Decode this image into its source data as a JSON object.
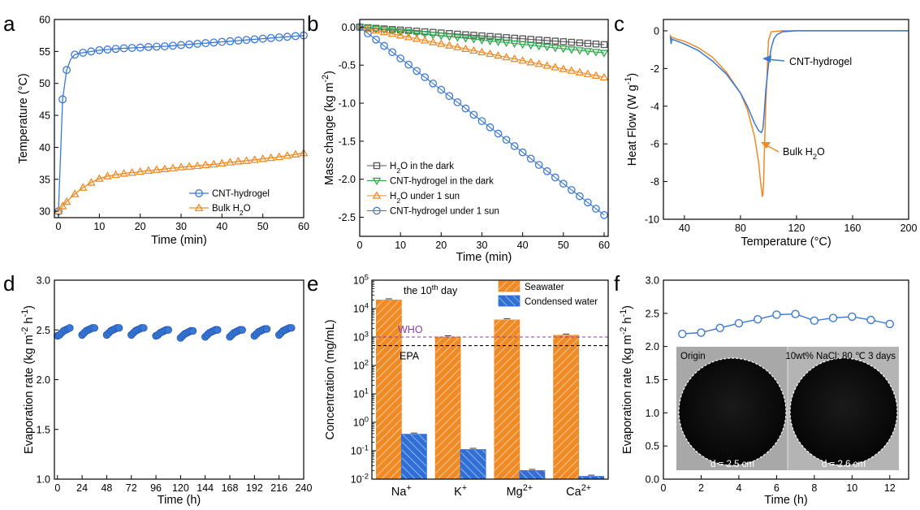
{
  "chart_data": [
    {
      "panel": "a",
      "type": "line",
      "xlabel": "Time (min)",
      "ylabel": "Temperature (°C)",
      "xlim": [
        -1,
        60
      ],
      "ylim": [
        29,
        60
      ],
      "xticks": [
        0,
        10,
        20,
        30,
        40,
        50,
        60
      ],
      "yticks": [
        30,
        35,
        40,
        45,
        50,
        55,
        60
      ],
      "legend_position": "bottom-right",
      "series": [
        {
          "name": "CNT-hydrogel",
          "marker": "circle",
          "color": "#3a78d8",
          "x": [
            0,
            1,
            2,
            3,
            4,
            5,
            6,
            7,
            8,
            9,
            10,
            11,
            12,
            13,
            14,
            15,
            16,
            17,
            18,
            19,
            20,
            21,
            22,
            23,
            24,
            25,
            26,
            27,
            28,
            29,
            30,
            31,
            32,
            33,
            34,
            35,
            36,
            37,
            38,
            39,
            40,
            41,
            42,
            43,
            44,
            45,
            46,
            47,
            48,
            49,
            50,
            51,
            52,
            53,
            54,
            55,
            56,
            57,
            58,
            59,
            60
          ],
          "y": [
            30,
            47.5,
            52.1,
            53.8,
            54.5,
            54.7,
            54.8,
            54.9,
            55.0,
            55.1,
            55.2,
            55.25,
            55.3,
            55.35,
            55.4,
            55.45,
            55.5,
            55.5,
            55.55,
            55.6,
            55.6,
            55.65,
            55.7,
            55.7,
            55.75,
            55.8,
            55.8,
            55.85,
            55.9,
            55.95,
            56.0,
            56.05,
            56.1,
            56.15,
            56.2,
            56.25,
            56.3,
            56.35,
            56.4,
            56.45,
            56.5,
            56.55,
            56.6,
            56.65,
            56.7,
            56.75,
            56.8,
            56.85,
            56.9,
            56.95,
            57.0,
            57.05,
            57.1,
            57.15,
            57.2,
            57.25,
            57.3,
            57.35,
            57.4,
            57.45,
            57.5
          ],
          "show_markers_every": 2
        },
        {
          "name": "Bulk H2O",
          "marker": "triangle",
          "color": "#f08a24",
          "x": [
            0,
            1,
            2,
            3,
            4,
            5,
            6,
            7,
            8,
            9,
            10,
            11,
            12,
            13,
            14,
            15,
            16,
            17,
            18,
            19,
            20,
            21,
            22,
            23,
            24,
            25,
            26,
            27,
            28,
            29,
            30,
            31,
            32,
            33,
            34,
            35,
            36,
            37,
            38,
            39,
            40,
            41,
            42,
            43,
            44,
            45,
            46,
            47,
            48,
            49,
            50,
            51,
            52,
            53,
            54,
            55,
            56,
            57,
            58,
            59,
            60
          ],
          "y": [
            30,
            30.8,
            31.5,
            32.1,
            32.7,
            33.2,
            33.7,
            34.1,
            34.5,
            34.8,
            35.1,
            35.3,
            35.5,
            35.6,
            35.7,
            35.8,
            35.9,
            36.0,
            36.05,
            36.1,
            36.2,
            36.3,
            36.35,
            36.4,
            36.5,
            36.55,
            36.6,
            36.7,
            36.75,
            36.8,
            36.9,
            36.95,
            37.0,
            37.05,
            37.1,
            37.2,
            37.25,
            37.3,
            37.35,
            37.4,
            37.5,
            37.6,
            37.65,
            37.7,
            37.8,
            37.85,
            37.9,
            38.0,
            38.05,
            38.1,
            38.2,
            38.3,
            38.35,
            38.4,
            38.5,
            38.6,
            38.7,
            38.8,
            38.9,
            39.0,
            39.1
          ],
          "show_markers_every": 2
        }
      ]
    },
    {
      "panel": "b",
      "type": "line",
      "xlabel": "Time (min)",
      "ylabel": "Mass change (kg m⁻²)",
      "xlim": [
        0,
        61
      ],
      "ylim": [
        -2.75,
        0.1
      ],
      "xticks": [
        0,
        10,
        20,
        30,
        40,
        50,
        60
      ],
      "yticks": [
        0.0,
        -0.5,
        -1.0,
        -1.5,
        -2.0,
        -2.5
      ],
      "ytick_labels": [
        "0.0",
        "-0.5",
        "-1.0",
        "-1.5",
        "-2.0",
        "-2.5"
      ],
      "legend_position": "bottom-left",
      "series": [
        {
          "name": "H2O in the dark",
          "marker": "square",
          "color": "#555555",
          "x_step": 2,
          "x_end": 60,
          "y_start": 0,
          "y_end": -0.23
        },
        {
          "name": "CNT-hydrogel in the dark",
          "marker": "triangle-down",
          "color": "#2aa84a",
          "x_step": 2,
          "x_end": 60,
          "y_start": 0,
          "y_end": -0.34
        },
        {
          "name": "H2O under 1 sun",
          "marker": "triangle",
          "color": "#f08a24",
          "x_step": 2,
          "x_end": 60,
          "y_start": 0,
          "y_end": -0.66
        },
        {
          "name": "CNT-hydrogel under 1 sun",
          "marker": "circle",
          "color": "#3a78d8",
          "x_step": 2,
          "x_end": 60,
          "y_start": 0,
          "y_end": -2.47
        }
      ]
    },
    {
      "panel": "c",
      "type": "line",
      "xlabel": "Temperature (°C)",
      "ylabel": "Heat Flow (W g⁻¹)",
      "xlim": [
        25,
        200
      ],
      "ylim": [
        -10,
        0.6
      ],
      "xticks": [
        40,
        80,
        120,
        160,
        200
      ],
      "yticks": [
        0,
        -2,
        -4,
        -6,
        -8,
        -10
      ],
      "series": [
        {
          "name": "CNT-hydrogel",
          "color": "#3a78d8",
          "x": [
            30,
            30.5,
            31,
            35,
            40,
            50,
            60,
            70,
            80,
            85,
            90,
            93,
            95,
            96,
            97,
            98,
            100,
            102,
            104,
            106,
            110,
            120,
            140,
            160,
            200
          ],
          "y": [
            -0.3,
            -0.7,
            -0.45,
            -0.55,
            -0.7,
            -1.05,
            -1.6,
            -2.3,
            -3.3,
            -4.0,
            -4.9,
            -5.3,
            -5.4,
            -5.2,
            -4.3,
            -3.2,
            -1.8,
            -0.9,
            -0.4,
            -0.2,
            -0.05,
            0.0,
            0.0,
            0.0,
            0.0
          ]
        },
        {
          "name": "Bulk H2O",
          "color": "#f08a24",
          "x": [
            30,
            30.5,
            31,
            35,
            40,
            50,
            60,
            70,
            80,
            85,
            90,
            93,
            94,
            95,
            95.5,
            96,
            96.5,
            97,
            98,
            100,
            102,
            110,
            120,
            160,
            200
          ],
          "y": [
            -0.2,
            -0.5,
            -0.35,
            -0.45,
            -0.55,
            -0.9,
            -1.4,
            -2.2,
            -3.3,
            -4.2,
            -5.6,
            -7.0,
            -7.8,
            -8.4,
            -8.8,
            -8.7,
            -8.0,
            -6.5,
            -4.0,
            -0.5,
            -0.05,
            0.0,
            0.0,
            0.0,
            0.0
          ]
        }
      ],
      "annotations": [
        "CNT-hydrogel",
        "Bulk H2O"
      ]
    },
    {
      "panel": "d",
      "type": "scatter",
      "xlabel": "Time (h)",
      "ylabel": "Evaporation rate (kg m⁻² h⁻¹)",
      "xlim": [
        -3,
        240
      ],
      "ylim": [
        1.0,
        3.0
      ],
      "xticks": [
        0,
        24,
        48,
        72,
        96,
        120,
        144,
        168,
        192,
        216,
        240
      ],
      "yticks": [
        1.0,
        1.5,
        2.0,
        2.5,
        3.0
      ],
      "ytick_labels": [
        "1.0",
        "1.5",
        "2.0",
        "2.5",
        "3.0"
      ],
      "cycles": [
        {
          "x": [
            0,
            2,
            4,
            6,
            8,
            10,
            12
          ],
          "y": [
            2.44,
            2.45,
            2.47,
            2.49,
            2.5,
            2.51,
            2.52
          ]
        },
        {
          "x": [
            24,
            26,
            28,
            30,
            32,
            34,
            36
          ],
          "y": [
            2.45,
            2.47,
            2.49,
            2.5,
            2.51,
            2.52,
            2.52
          ]
        },
        {
          "x": [
            48,
            50,
            52,
            54,
            56,
            58,
            60
          ],
          "y": [
            2.45,
            2.47,
            2.49,
            2.5,
            2.51,
            2.52,
            2.52
          ]
        },
        {
          "x": [
            72,
            74,
            76,
            78,
            80,
            82,
            84
          ],
          "y": [
            2.45,
            2.47,
            2.49,
            2.5,
            2.51,
            2.52,
            2.52
          ]
        },
        {
          "x": [
            96,
            98,
            100,
            102,
            104,
            106,
            108
          ],
          "y": [
            2.44,
            2.45,
            2.47,
            2.48,
            2.49,
            2.5,
            2.5
          ]
        },
        {
          "x": [
            120,
            122,
            124,
            126,
            128,
            130,
            132
          ],
          "y": [
            2.42,
            2.44,
            2.46,
            2.47,
            2.48,
            2.49,
            2.49
          ]
        },
        {
          "x": [
            144,
            146,
            148,
            150,
            152,
            154,
            156
          ],
          "y": [
            2.43,
            2.45,
            2.47,
            2.48,
            2.49,
            2.5,
            2.5
          ]
        },
        {
          "x": [
            168,
            170,
            172,
            174,
            176,
            178,
            180
          ],
          "y": [
            2.43,
            2.45,
            2.47,
            2.48,
            2.49,
            2.5,
            2.5
          ]
        },
        {
          "x": [
            192,
            194,
            196,
            198,
            200,
            202,
            204
          ],
          "y": [
            2.44,
            2.46,
            2.48,
            2.49,
            2.5,
            2.51,
            2.51
          ]
        },
        {
          "x": [
            216,
            218,
            220,
            222,
            224,
            226,
            228
          ],
          "y": [
            2.45,
            2.47,
            2.49,
            2.5,
            2.51,
            2.52,
            2.52
          ]
        }
      ],
      "color": "#3a78d8"
    },
    {
      "panel": "e",
      "type": "bar",
      "yscale": "log",
      "xlabel": "",
      "ylabel": "Concentration (mg/mL)",
      "ylim_exp": [
        -2,
        5
      ],
      "yticks_exp": [
        -2,
        -1,
        0,
        1,
        2,
        3,
        4,
        5
      ],
      "categories": [
        "Na⁺",
        "K⁺",
        "Mg²⁺",
        "Ca²⁺"
      ],
      "series": [
        {
          "name": "Seawater",
          "color": "#f08a24",
          "values": [
            20000,
            1000,
            4000,
            1150
          ]
        },
        {
          "name": "Condensed water",
          "color": "#2f6fd6",
          "values": [
            0.38,
            0.11,
            0.02,
            0.0125
          ]
        }
      ],
      "reference_lines": [
        {
          "label": "WHO",
          "value": 1000,
          "color": "#8a3bb0"
        },
        {
          "label": "EPA",
          "value": 500,
          "color": "#000000"
        }
      ],
      "note_base": "the 10",
      "note_sup": "th",
      "note_tail": " day",
      "legend_position": "top-right"
    },
    {
      "panel": "f",
      "type": "line",
      "xlabel": "Time (h)",
      "ylabel": "Evaporation rate (kg m⁻² h⁻¹)",
      "xlim": [
        0,
        13
      ],
      "ylim": [
        0.0,
        3.0
      ],
      "xticks": [
        0,
        2,
        4,
        6,
        8,
        10,
        12
      ],
      "yticks": [
        0.0,
        0.5,
        1.0,
        1.5,
        2.0,
        2.5,
        3.0
      ],
      "ytick_labels": [
        "0.0",
        "0.5",
        "1.0",
        "1.5",
        "2.0",
        "2.5",
        "3.0"
      ],
      "x": [
        1,
        2,
        3,
        4,
        5,
        6,
        7,
        8,
        9,
        10,
        11,
        12
      ],
      "y": [
        2.19,
        2.21,
        2.28,
        2.35,
        2.41,
        2.48,
        2.49,
        2.39,
        2.43,
        2.45,
        2.4,
        2.34
      ],
      "color": "#3a78d8",
      "inset": {
        "left_label": "Origin",
        "right_label": "10wt% NaCl; 80 ℃  3 days",
        "left_diameter": "d = 2.5 cm",
        "right_diameter": "d = 2.6 cm"
      }
    }
  ],
  "panel_letters": [
    "a",
    "b",
    "c",
    "d",
    "e",
    "f"
  ]
}
